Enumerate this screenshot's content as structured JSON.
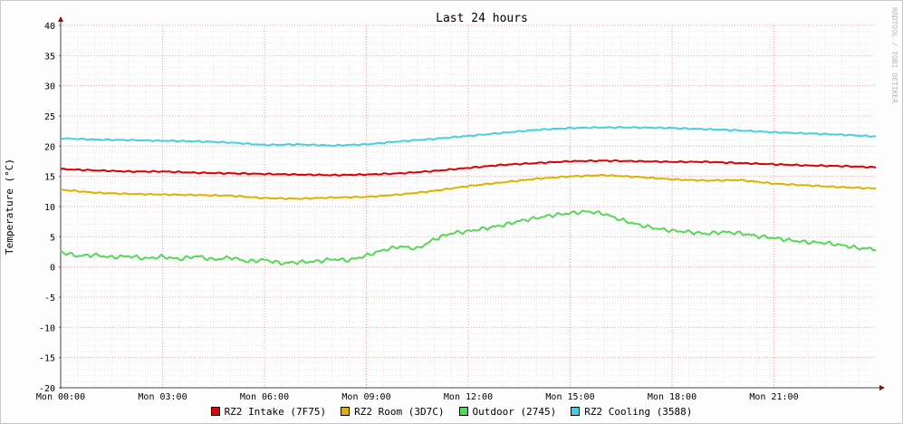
{
  "chart_data": {
    "type": "line",
    "title": "Last 24 hours",
    "ylabel": "Temperature (°C)",
    "xlabel": "",
    "ylim": [
      -20,
      40
    ],
    "yticks": [
      40,
      35,
      30,
      25,
      20,
      15,
      10,
      5,
      0,
      -5,
      -10,
      -15,
      -20
    ],
    "x_hours_range": [
      0,
      24
    ],
    "xticks": [
      {
        "hour": 0,
        "label": "Mon 00:00"
      },
      {
        "hour": 3,
        "label": "Mon 03:00"
      },
      {
        "hour": 6,
        "label": "Mon 06:00"
      },
      {
        "hour": 9,
        "label": "Mon 09:00"
      },
      {
        "hour": 12,
        "label": "Mon 12:00"
      },
      {
        "hour": 15,
        "label": "Mon 15:00"
      },
      {
        "hour": 18,
        "label": "Mon 18:00"
      },
      {
        "hour": 21,
        "label": "Mon 21:00"
      }
    ],
    "grid": true,
    "legend_position": "bottom",
    "watermark": "RRDTOOL / TOBI OETIKER",
    "series": [
      {
        "name": "RZ2 Intake (7F75)",
        "color": "#e00000",
        "points": [
          [
            0,
            16.2
          ],
          [
            1,
            16.0
          ],
          [
            2,
            15.8
          ],
          [
            3,
            15.8
          ],
          [
            4,
            15.6
          ],
          [
            5,
            15.5
          ],
          [
            6,
            15.4
          ],
          [
            7,
            15.3
          ],
          [
            8,
            15.2
          ],
          [
            9,
            15.3
          ],
          [
            10,
            15.5
          ],
          [
            11,
            15.9
          ],
          [
            12,
            16.4
          ],
          [
            13,
            16.9
          ],
          [
            14,
            17.2
          ],
          [
            15,
            17.5
          ],
          [
            16,
            17.6
          ],
          [
            17,
            17.5
          ],
          [
            18,
            17.4
          ],
          [
            19,
            17.4
          ],
          [
            20,
            17.2
          ],
          [
            21,
            17.0
          ],
          [
            22,
            16.8
          ],
          [
            23,
            16.7
          ],
          [
            24,
            16.5
          ]
        ]
      },
      {
        "name": "RZ2 Room (3D7C)",
        "color": "#e0b000",
        "points": [
          [
            0,
            12.8
          ],
          [
            1,
            12.3
          ],
          [
            2,
            12.1
          ],
          [
            3,
            12.0
          ],
          [
            4,
            11.9
          ],
          [
            5,
            11.8
          ],
          [
            6,
            11.4
          ],
          [
            7,
            11.3
          ],
          [
            8,
            11.5
          ],
          [
            9,
            11.6
          ],
          [
            10,
            12.0
          ],
          [
            11,
            12.6
          ],
          [
            12,
            13.4
          ],
          [
            13,
            14.0
          ],
          [
            14,
            14.6
          ],
          [
            15,
            15.0
          ],
          [
            16,
            15.2
          ],
          [
            17,
            14.9
          ],
          [
            18,
            14.5
          ],
          [
            19,
            14.3
          ],
          [
            20,
            14.4
          ],
          [
            21,
            13.8
          ],
          [
            22,
            13.5
          ],
          [
            23,
            13.2
          ],
          [
            24,
            13.0
          ]
        ]
      },
      {
        "name": "Outdoor (2745)",
        "color": "#55d855",
        "points": [
          [
            0,
            2.5
          ],
          [
            0.5,
            1.8
          ],
          [
            1,
            2.0
          ],
          [
            1.5,
            1.6
          ],
          [
            2,
            1.8
          ],
          [
            2.5,
            1.4
          ],
          [
            3,
            1.7
          ],
          [
            3.5,
            1.3
          ],
          [
            4,
            1.8
          ],
          [
            4.5,
            1.2
          ],
          [
            5,
            1.6
          ],
          [
            5.5,
            0.9
          ],
          [
            6,
            1.2
          ],
          [
            6.5,
            0.6
          ],
          [
            7,
            0.8
          ],
          [
            7.5,
            0.9
          ],
          [
            8,
            1.3
          ],
          [
            8.5,
            1.1
          ],
          [
            9,
            1.9
          ],
          [
            9.5,
            2.8
          ],
          [
            10,
            3.4
          ],
          [
            10.5,
            3.0
          ],
          [
            11,
            4.6
          ],
          [
            11.5,
            5.6
          ],
          [
            12,
            5.9
          ],
          [
            12.5,
            6.4
          ],
          [
            13,
            6.9
          ],
          [
            13.5,
            7.6
          ],
          [
            14,
            8.1
          ],
          [
            14.5,
            8.6
          ],
          [
            15,
            8.9
          ],
          [
            15.5,
            9.2
          ],
          [
            16,
            8.8
          ],
          [
            16.5,
            7.8
          ],
          [
            17,
            7.0
          ],
          [
            17.5,
            6.4
          ],
          [
            18,
            6.0
          ],
          [
            18.5,
            5.8
          ],
          [
            19,
            5.5
          ],
          [
            19.5,
            5.8
          ],
          [
            20,
            5.6
          ],
          [
            20.5,
            5.1
          ],
          [
            21,
            4.8
          ],
          [
            21.5,
            4.4
          ],
          [
            22,
            4.1
          ],
          [
            22.5,
            4.0
          ],
          [
            23,
            3.6
          ],
          [
            23.5,
            3.1
          ],
          [
            24,
            3.0
          ]
        ]
      },
      {
        "name": "RZ2 Cooling (3588)",
        "color": "#44d0e0",
        "points": [
          [
            0,
            21.3
          ],
          [
            1,
            21.1
          ],
          [
            2,
            21.0
          ],
          [
            3,
            20.9
          ],
          [
            4,
            20.8
          ],
          [
            5,
            20.6
          ],
          [
            6,
            20.2
          ],
          [
            7,
            20.3
          ],
          [
            8,
            20.1
          ],
          [
            9,
            20.3
          ],
          [
            10,
            20.8
          ],
          [
            11,
            21.2
          ],
          [
            12,
            21.7
          ],
          [
            13,
            22.2
          ],
          [
            14,
            22.7
          ],
          [
            15,
            23.0
          ],
          [
            16,
            23.1
          ],
          [
            17,
            23.1
          ],
          [
            18,
            23.0
          ],
          [
            19,
            22.8
          ],
          [
            20,
            22.6
          ],
          [
            21,
            22.3
          ],
          [
            22,
            22.1
          ],
          [
            23,
            21.9
          ],
          [
            24,
            21.6
          ]
        ]
      }
    ]
  }
}
